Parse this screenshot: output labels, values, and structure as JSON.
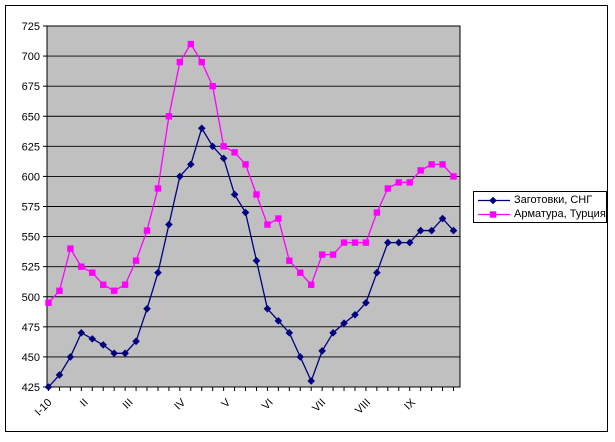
{
  "chart_data": {
    "type": "line",
    "title": "",
    "plot_bg": "#C0C0C0",
    "page_bg": "#FFFFFF",
    "grid": "horizontal",
    "grid_color": "#000000",
    "legend_position": "right",
    "y_axis": {
      "min": 425,
      "max": 725,
      "step": 25,
      "tick_labels": [
        "425",
        "450",
        "475",
        "500",
        "525",
        "550",
        "575",
        "600",
        "625",
        "650",
        "675",
        "700",
        "725"
      ]
    },
    "x_axis": {
      "tick_labels": [
        "I-10",
        "II",
        "III",
        "IV",
        "V",
        "VI",
        "VII",
        "VIII",
        "IX"
      ],
      "label_point_indices": [
        0,
        3.3,
        7.4,
        12.2,
        16.3,
        20.2,
        25,
        29.1,
        33.2
      ],
      "points_count": 38
    },
    "series": [
      {
        "name": "Заготовки, СНГ",
        "color": "#000080",
        "marker": "diamond",
        "values": [
          425,
          435,
          450,
          470,
          465,
          460,
          453,
          453,
          463,
          490,
          520,
          560,
          600,
          610,
          640,
          625,
          615,
          585,
          570,
          530,
          490,
          480,
          470,
          450,
          430,
          455,
          470,
          478,
          485,
          495,
          520,
          545,
          545,
          545,
          555,
          555,
          565,
          555
        ]
      },
      {
        "name": "Арматура, Турция",
        "color": "#FF00FF",
        "marker": "square",
        "values": [
          495,
          505,
          540,
          525,
          520,
          510,
          505,
          510,
          530,
          555,
          590,
          650,
          695,
          710,
          695,
          675,
          625,
          620,
          610,
          585,
          560,
          565,
          530,
          520,
          510,
          535,
          535,
          545,
          545,
          545,
          570,
          590,
          595,
          595,
          605,
          610,
          610,
          600
        ]
      }
    ]
  }
}
